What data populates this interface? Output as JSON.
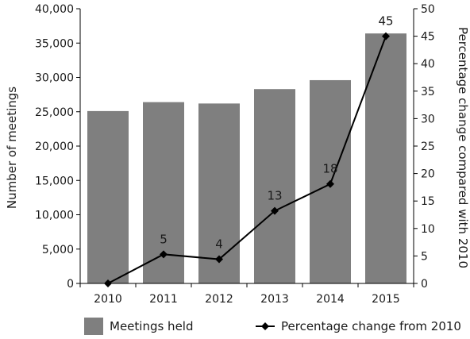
{
  "chart_data": {
    "type": "bar",
    "categories": [
      "2010",
      "2011",
      "2012",
      "2013",
      "2014",
      "2015"
    ],
    "series": [
      {
        "name": "Meetings held",
        "type": "bar",
        "axis": "left",
        "color": "#7f7f7f",
        "values": [
          25100,
          26400,
          26200,
          28300,
          29600,
          36400
        ]
      },
      {
        "name": "Percentage change from 2010",
        "type": "line",
        "axis": "right",
        "color": "#000000",
        "marker": "diamond",
        "values": [
          0,
          5.3,
          4.4,
          13.2,
          18.1,
          45
        ],
        "data_labels": [
          "",
          "5",
          "4",
          "13",
          "18",
          "45"
        ]
      }
    ],
    "ylabel": "Number of meetings",
    "y2label": "Percentage change compared with 2010",
    "ylim": [
      0,
      40000
    ],
    "y2lim": [
      0,
      50
    ],
    "yticks": [
      "0",
      "5,000",
      "10,000",
      "15,000",
      "20,000",
      "25,000",
      "30,000",
      "35,000",
      "40,000"
    ],
    "y2ticks": [
      "0",
      "5",
      "10",
      "15",
      "20",
      "25",
      "30",
      "35",
      "40",
      "45",
      "50"
    ],
    "grid": false,
    "legend": "bottom"
  }
}
